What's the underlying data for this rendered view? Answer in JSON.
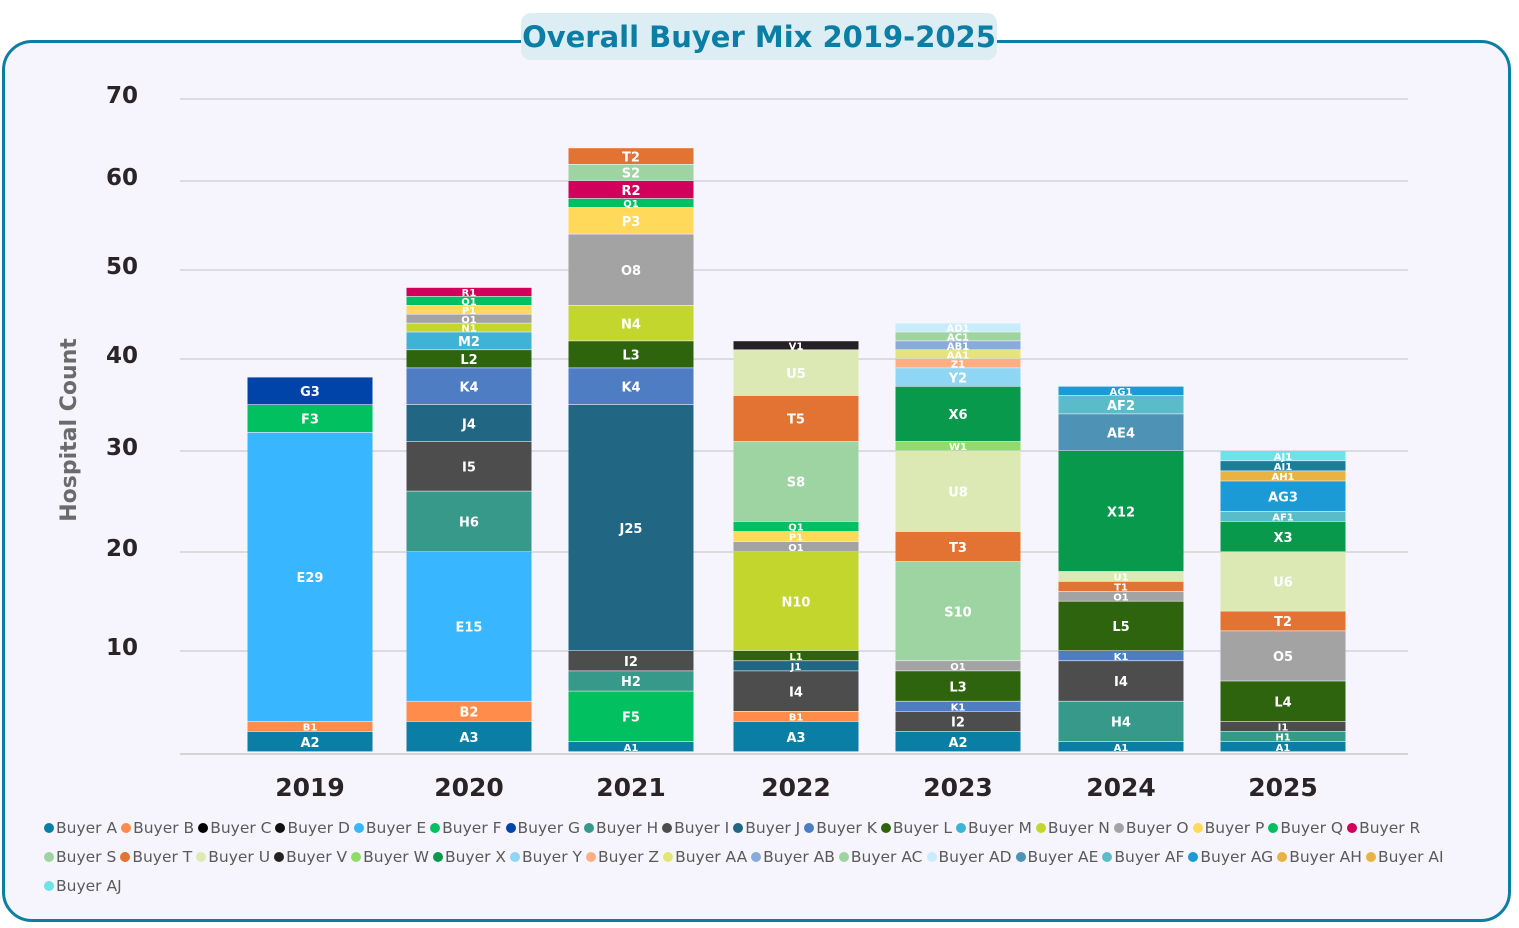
{
  "chart_data": {
    "type": "bar",
    "stacked": true,
    "title": "Overall Buyer Mix 2019-2025",
    "xlabel": "",
    "ylabel": "Hospital Count",
    "ylim": [
      0,
      70
    ],
    "yticks": [
      10,
      20,
      30,
      40,
      50,
      60,
      70
    ],
    "grid": true,
    "legend_position": "bottom",
    "categories": [
      "2019",
      "2020",
      "2021",
      "2022",
      "2023",
      "2024",
      "2025"
    ],
    "buyers": [
      {
        "code": "A",
        "name": "Buyer A",
        "color": "#0a7ea4"
      },
      {
        "code": "B",
        "name": "Buyer B",
        "color": "#ff8c4a"
      },
      {
        "code": "C",
        "name": "Buyer C",
        "color": "#000000"
      },
      {
        "code": "D",
        "name": "Buyer D",
        "color": "#111111"
      },
      {
        "code": "E",
        "name": "Buyer E",
        "color": "#38b6ff"
      },
      {
        "code": "F",
        "name": "Buyer F",
        "color": "#00c060"
      },
      {
        "code": "G",
        "name": "Buyer G",
        "color": "#0044aa"
      },
      {
        "code": "H",
        "name": "Buyer H",
        "color": "#36998a"
      },
      {
        "code": "I",
        "name": "Buyer I",
        "color": "#4d4d4d"
      },
      {
        "code": "J",
        "name": "Buyer J",
        "color": "#216682"
      },
      {
        "code": "K",
        "name": "Buyer K",
        "color": "#4e7dc4"
      },
      {
        "code": "L",
        "name": "Buyer L",
        "color": "#2f640e"
      },
      {
        "code": "M",
        "name": "Buyer M",
        "color": "#3fb3d6"
      },
      {
        "code": "N",
        "name": "Buyer N",
        "color": "#c2d62e"
      },
      {
        "code": "O",
        "name": "Buyer O",
        "color": "#a3a3a3"
      },
      {
        "code": "P",
        "name": "Buyer P",
        "color": "#ffd95a"
      },
      {
        "code": "Q",
        "name": "Buyer Q",
        "color": "#00bf63"
      },
      {
        "code": "R",
        "name": "Buyer R",
        "color": "#d1005a"
      },
      {
        "code": "S",
        "name": "Buyer S",
        "color": "#9dd4a1"
      },
      {
        "code": "T",
        "name": "Buyer T",
        "color": "#e27333"
      },
      {
        "code": "U",
        "name": "Buyer U",
        "color": "#dde9b4"
      },
      {
        "code": "V",
        "name": "Buyer V",
        "color": "#262224"
      },
      {
        "code": "W",
        "name": "Buyer W",
        "color": "#8fdc6a"
      },
      {
        "code": "X",
        "name": "Buyer X",
        "color": "#08994d"
      },
      {
        "code": "Y",
        "name": "Buyer Y",
        "color": "#8fd6f4"
      },
      {
        "code": "Z",
        "name": "Buyer Z",
        "color": "#ffae84"
      },
      {
        "code": "AA",
        "name": "Buyer AA",
        "color": "#e3e57a"
      },
      {
        "code": "AB",
        "name": "Buyer AB",
        "color": "#89aadc"
      },
      {
        "code": "AC",
        "name": "Buyer AC",
        "color": "#9ed4a0"
      },
      {
        "code": "AD",
        "name": "Buyer AD",
        "color": "#c8ecfb"
      },
      {
        "code": "AE",
        "name": "Buyer AE",
        "color": "#4e93b6"
      },
      {
        "code": "AF",
        "name": "Buyer AF",
        "color": "#5bbcc9"
      },
      {
        "code": "AG",
        "name": "Buyer AG",
        "color": "#1c9ad6"
      },
      {
        "code": "AH",
        "name": "Buyer AH",
        "color": "#e8b343"
      },
      {
        "code": "AI",
        "name": "Buyer AI",
        "color": "#1a7e9a"
      },
      {
        "code": "AJ",
        "name": "Buyer AJ",
        "color": "#6be3e8"
      }
    ],
    "legend_colors_override": {
      "AI": "#e8b343"
    },
    "stacks": [
      {
        "year": "2019",
        "segments": [
          [
            "A",
            2
          ],
          [
            "B",
            1
          ],
          [
            "E",
            29
          ],
          [
            "F",
            3
          ],
          [
            "G",
            3
          ]
        ]
      },
      {
        "year": "2020",
        "segments": [
          [
            "A",
            3
          ],
          [
            "B",
            2
          ],
          [
            "E",
            15
          ],
          [
            "H",
            6
          ],
          [
            "I",
            5
          ],
          [
            "J",
            4
          ],
          [
            "K",
            4
          ],
          [
            "L",
            2
          ],
          [
            "M",
            2
          ],
          [
            "N",
            1
          ],
          [
            "O",
            1
          ],
          [
            "P",
            1
          ],
          [
            "Q",
            1
          ],
          [
            "R",
            1
          ]
        ]
      },
      {
        "year": "2021",
        "segments": [
          [
            "A",
            1
          ],
          [
            "F",
            5
          ],
          [
            "H",
            2
          ],
          [
            "I",
            2
          ],
          [
            "J",
            25
          ],
          [
            "K",
            4
          ],
          [
            "L",
            3
          ],
          [
            "N",
            4
          ],
          [
            "O",
            8
          ],
          [
            "P",
            3
          ],
          [
            "Q",
            1
          ],
          [
            "R",
            2
          ],
          [
            "S",
            2
          ],
          [
            "T",
            2
          ]
        ]
      },
      {
        "year": "2022",
        "segments": [
          [
            "A",
            3
          ],
          [
            "B",
            1
          ],
          [
            "I",
            4
          ],
          [
            "J",
            1
          ],
          [
            "L",
            1
          ],
          [
            "N",
            10
          ],
          [
            "O",
            1
          ],
          [
            "P",
            1
          ],
          [
            "Q",
            1
          ],
          [
            "S",
            8
          ],
          [
            "T",
            5
          ],
          [
            "U",
            5
          ],
          [
            "V",
            1
          ]
        ]
      },
      {
        "year": "2023",
        "segments": [
          [
            "A",
            2
          ],
          [
            "I",
            2
          ],
          [
            "K",
            1
          ],
          [
            "L",
            3
          ],
          [
            "O",
            1
          ],
          [
            "S",
            10
          ],
          [
            "T",
            3
          ],
          [
            "U",
            8
          ],
          [
            "W",
            1
          ],
          [
            "X",
            6
          ],
          [
            "Y",
            2
          ],
          [
            "Z",
            1
          ],
          [
            "AA",
            1
          ],
          [
            "AB",
            1
          ],
          [
            "AC",
            1
          ],
          [
            "AD",
            1
          ]
        ]
      },
      {
        "year": "2024",
        "segments": [
          [
            "A",
            1
          ],
          [
            "H",
            4
          ],
          [
            "I",
            4
          ],
          [
            "K",
            1
          ],
          [
            "L",
            5
          ],
          [
            "O",
            1
          ],
          [
            "T",
            1
          ],
          [
            "U",
            1
          ],
          [
            "X",
            12
          ],
          [
            "AE",
            4
          ],
          [
            "AF",
            2
          ],
          [
            "AG",
            1
          ]
        ]
      },
      {
        "year": "2025",
        "segments": [
          [
            "A",
            1
          ],
          [
            "H",
            1
          ],
          [
            "I",
            1
          ],
          [
            "L",
            4
          ],
          [
            "O",
            5
          ],
          [
            "T",
            2
          ],
          [
            "U",
            6
          ],
          [
            "X",
            3
          ],
          [
            "AF",
            1
          ],
          [
            "AG",
            3
          ],
          [
            "AH",
            1
          ],
          [
            "AI",
            1
          ],
          [
            "AJ",
            1
          ]
        ]
      }
    ]
  }
}
